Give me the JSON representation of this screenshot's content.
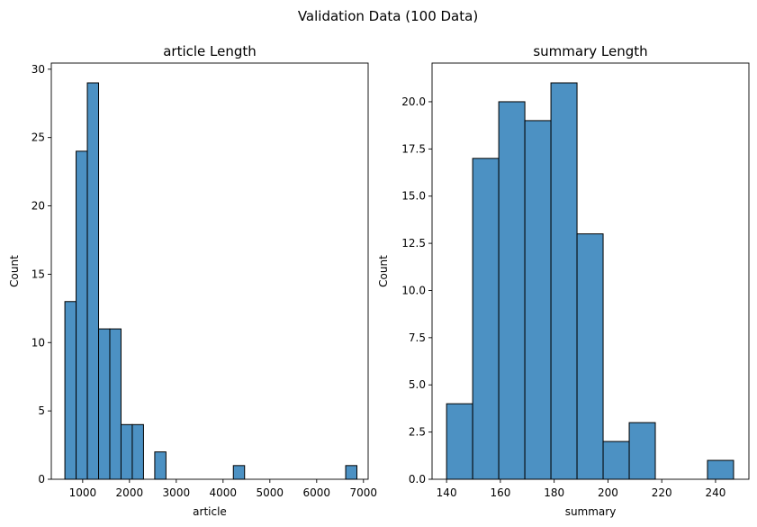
{
  "suptitle": "Validation Data (100 Data)",
  "chart_data": [
    {
      "type": "bar",
      "subtype": "histogram",
      "title": "article Length",
      "xlabel": "article",
      "ylabel": "Count",
      "xlim": [
        330,
        7100
      ],
      "ylim": [
        0,
        30.45
      ],
      "xticks": [
        1000,
        2000,
        3000,
        4000,
        5000,
        6000,
        7000
      ],
      "yticks": [
        0,
        5,
        10,
        15,
        20,
        25,
        30
      ],
      "bin_edges": [
        620,
        860,
        1100,
        1340,
        1580,
        1820,
        2060,
        2300,
        2540,
        2780,
        3020,
        3260,
        3500,
        3740,
        3980,
        4220,
        4460,
        4700,
        4940,
        5180,
        5420,
        5660,
        5900,
        6140,
        6380,
        6620,
        6860
      ],
      "values": [
        13,
        24,
        29,
        11,
        11,
        4,
        4,
        0,
        2,
        0,
        0,
        0,
        0,
        0,
        0,
        1,
        0,
        0,
        0,
        0,
        0,
        0,
        0,
        0,
        0,
        1
      ],
      "grid": false,
      "color": "#4c91c3"
    },
    {
      "type": "bar",
      "subtype": "histogram",
      "title": "summary Length",
      "xlabel": "summary",
      "ylabel": "Count",
      "xlim": [
        134.6,
        252.4
      ],
      "ylim": [
        0,
        22.05
      ],
      "xticks": [
        140,
        160,
        180,
        200,
        220,
        240
      ],
      "yticks": [
        0.0,
        2.5,
        5.0,
        7.5,
        10.0,
        12.5,
        15.0,
        17.5,
        20.0
      ],
      "ytick_labels": [
        "0.0",
        "2.5",
        "5.0",
        "7.5",
        "10.0",
        "12.5",
        "15.0",
        "17.5",
        "20.0"
      ],
      "bin_edges": [
        140,
        149.7,
        159.4,
        169.1,
        178.8,
        188.5,
        198.2,
        207.9,
        217.6,
        227.3,
        237.0,
        246.7
      ],
      "values": [
        4,
        17,
        20,
        19,
        21,
        13,
        2,
        3,
        0,
        0,
        1
      ],
      "grid": false,
      "color": "#4c91c3"
    }
  ]
}
